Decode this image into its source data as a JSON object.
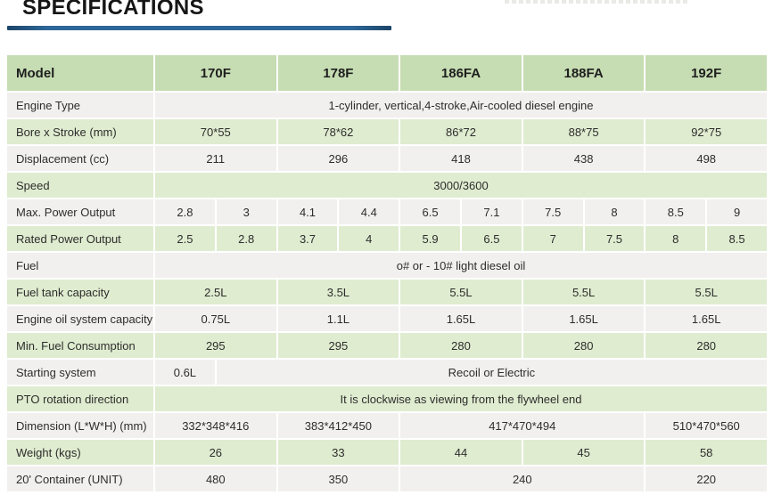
{
  "page": {
    "title": "SPECIFICATIONS"
  },
  "colors": {
    "title": "#161616",
    "text": "#2e2d2c",
    "accent_underline": "#2d6698",
    "header_bg": "#c6dcb2",
    "row_green_bg": "#dfecd0",
    "row_gray_bg": "#f1f0ee"
  },
  "table": {
    "header": {
      "label": "Model",
      "models": [
        "170F",
        "178F",
        "186FA",
        "188FA",
        "192F"
      ]
    },
    "rows": [
      {
        "label": "Engine Type",
        "cells": [
          {
            "text": "1-cylinder, vertical,4-stroke,Air-cooled diesel engine",
            "span": 10
          }
        ]
      },
      {
        "label": "Bore x Stroke (mm)",
        "cells": [
          {
            "text": "70*55",
            "span": 2
          },
          {
            "text": "78*62",
            "span": 2
          },
          {
            "text": "86*72",
            "span": 2
          },
          {
            "text": "88*75",
            "span": 2
          },
          {
            "text": "92*75",
            "span": 2
          }
        ]
      },
      {
        "label": "Displacement (cc)",
        "cells": [
          {
            "text": "211",
            "span": 2
          },
          {
            "text": "296",
            "span": 2
          },
          {
            "text": "418",
            "span": 2
          },
          {
            "text": "438",
            "span": 2
          },
          {
            "text": "498",
            "span": 2
          }
        ]
      },
      {
        "label": "Speed",
        "cells": [
          {
            "text": "3000/3600",
            "span": 10
          }
        ]
      },
      {
        "label": "Max. Power Output",
        "cells": [
          {
            "text": "2.8",
            "span": 1
          },
          {
            "text": "3",
            "span": 1
          },
          {
            "text": "4.1",
            "span": 1
          },
          {
            "text": "4.4",
            "span": 1
          },
          {
            "text": "6.5",
            "span": 1
          },
          {
            "text": "7.1",
            "span": 1
          },
          {
            "text": "7.5",
            "span": 1
          },
          {
            "text": "8",
            "span": 1
          },
          {
            "text": "8.5",
            "span": 1
          },
          {
            "text": "9",
            "span": 1
          }
        ]
      },
      {
        "label": "Rated Power Output",
        "cells": [
          {
            "text": "2.5",
            "span": 1
          },
          {
            "text": "2.8",
            "span": 1
          },
          {
            "text": "3.7",
            "span": 1
          },
          {
            "text": "4",
            "span": 1
          },
          {
            "text": "5.9",
            "span": 1
          },
          {
            "text": "6.5",
            "span": 1
          },
          {
            "text": "7",
            "span": 1
          },
          {
            "text": "7.5",
            "span": 1
          },
          {
            "text": "8",
            "span": 1
          },
          {
            "text": "8.5",
            "span": 1
          }
        ]
      },
      {
        "label": "Fuel",
        "cells": [
          {
            "text": "o# or - 10# light diesel oil",
            "span": 10
          }
        ]
      },
      {
        "label": "Fuel tank capacity",
        "cells": [
          {
            "text": "2.5L",
            "span": 2
          },
          {
            "text": "3.5L",
            "span": 2
          },
          {
            "text": "5.5L",
            "span": 2
          },
          {
            "text": "5.5L",
            "span": 2
          },
          {
            "text": "5.5L",
            "span": 2
          }
        ]
      },
      {
        "label": "Engine oil system capacity",
        "cells": [
          {
            "text": "0.75L",
            "span": 2
          },
          {
            "text": "1.1L",
            "span": 2
          },
          {
            "text": "1.65L",
            "span": 2
          },
          {
            "text": "1.65L",
            "span": 2
          },
          {
            "text": "1.65L",
            "span": 2
          }
        ]
      },
      {
        "label": "Min. Fuel Consumption",
        "cells": [
          {
            "text": "295",
            "span": 2
          },
          {
            "text": "295",
            "span": 2
          },
          {
            "text": "280",
            "span": 2
          },
          {
            "text": "280",
            "span": 2
          },
          {
            "text": "280",
            "span": 2
          }
        ]
      },
      {
        "label": "Starting system",
        "cells": [
          {
            "text": "0.6L",
            "span": 1
          },
          {
            "text": "Recoil or Electric",
            "span": 9
          }
        ]
      },
      {
        "label": "PTO rotation direction",
        "cells": [
          {
            "text": "It is clockwise as viewing from the flywheel end",
            "span": 10
          }
        ]
      },
      {
        "label": "Dimension (L*W*H) (mm)",
        "cells": [
          {
            "text": "332*348*416",
            "span": 2
          },
          {
            "text": "383*412*450",
            "span": 2
          },
          {
            "text": "417*470*494",
            "span": 4
          },
          {
            "text": "510*470*560",
            "span": 2
          }
        ]
      },
      {
        "label": "Weight (kgs)",
        "cells": [
          {
            "text": "26",
            "span": 2
          },
          {
            "text": "33",
            "span": 2
          },
          {
            "text": "44",
            "span": 2
          },
          {
            "text": "45",
            "span": 2
          },
          {
            "text": "58",
            "span": 2
          }
        ]
      },
      {
        "label": "20' Container (UNIT)",
        "cells": [
          {
            "text": "480",
            "span": 2
          },
          {
            "text": "350",
            "span": 2
          },
          {
            "text": "240",
            "span": 4
          },
          {
            "text": "220",
            "span": 2
          }
        ]
      }
    ]
  }
}
